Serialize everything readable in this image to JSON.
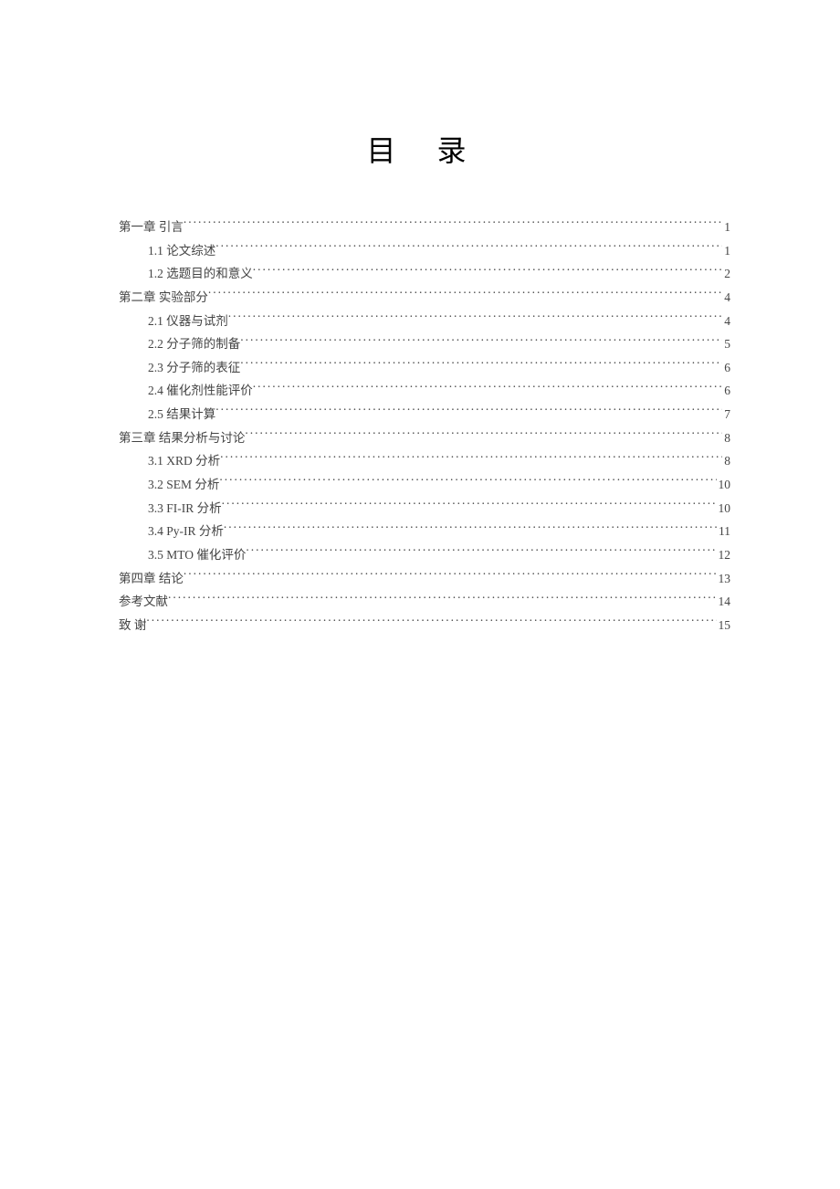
{
  "title": "目 录",
  "text_color": "#444444",
  "background_color": "#ffffff",
  "font_size_title": 32,
  "font_size_body": 13.5,
  "entries": [
    {
      "level": 1,
      "label": "第一章 引言",
      "page": "1"
    },
    {
      "level": 2,
      "label": "1.1 论文综述",
      "page": "1"
    },
    {
      "level": 2,
      "label": "1.2 选题目的和意义",
      "page": "2"
    },
    {
      "level": 1,
      "label": "第二章 实验部分",
      "page": "4"
    },
    {
      "level": 2,
      "label": "2.1 仪器与试剂",
      "page": "4"
    },
    {
      "level": 2,
      "label": "2.2 分子筛的制备",
      "page": "5"
    },
    {
      "level": 2,
      "label": "2.3 分子筛的表征",
      "page": "6"
    },
    {
      "level": 2,
      "label": "2.4 催化剂性能评价",
      "page": "6"
    },
    {
      "level": 2,
      "label": "2.5 结果计算",
      "page": "7"
    },
    {
      "level": 1,
      "label": "第三章 结果分析与讨论",
      "page": "8"
    },
    {
      "level": 2,
      "label": "3.1 XRD 分析",
      "page": "8"
    },
    {
      "level": 2,
      "label": "3.2 SEM 分析",
      "page": "10"
    },
    {
      "level": 2,
      "label": "3.3 FI-IR 分析",
      "page": "10"
    },
    {
      "level": 2,
      "label": "3.4 Py-IR 分析",
      "page": "11"
    },
    {
      "level": 2,
      "label": "3.5 MTO 催化评价",
      "page": "12"
    },
    {
      "level": 1,
      "label": "第四章 结论",
      "page": "13"
    },
    {
      "level": 1,
      "label": "参考文献",
      "page": "14"
    },
    {
      "level": 1,
      "label": "致   谢",
      "page": "15"
    }
  ]
}
